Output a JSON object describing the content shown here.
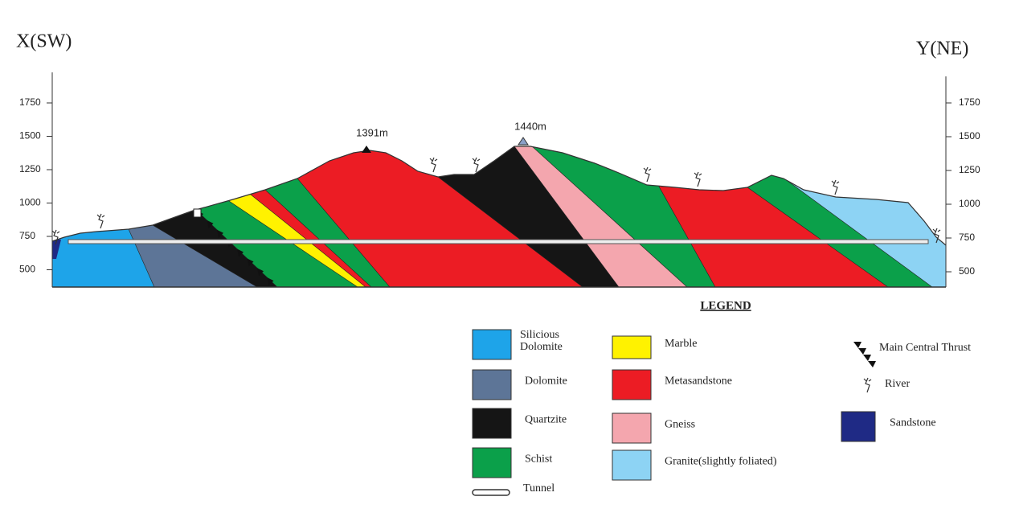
{
  "title_left": "X(SW)",
  "title_right": "Y(NE)",
  "left_axis": {
    "ticks": [
      1750,
      1500,
      1250,
      1000,
      750,
      500
    ]
  },
  "right_axis": {
    "ticks": [
      1750,
      1500,
      1250,
      1000,
      750,
      500
    ]
  },
  "peaks": [
    {
      "label": "1391m"
    },
    {
      "label": "1440m"
    }
  ],
  "legend": {
    "title": "LEGEND",
    "items": [
      {
        "lines": [
          "Silicious",
          "Dolomite"
        ],
        "color": "#1ea4e9"
      },
      {
        "label": "Dolomite",
        "color": "#5d7597"
      },
      {
        "label": "Quartzite",
        "color": "#151515"
      },
      {
        "label": "Schist",
        "color": "#0ba04a"
      },
      {
        "label": "Tunnel"
      },
      {
        "label": "Marble",
        "color": "#fff200"
      },
      {
        "label": "Metasandstone",
        "color": "#ec1c24"
      },
      {
        "label": "Gneiss",
        "color": "#f4a6ae"
      },
      {
        "label": "Granite(slightly foliated)",
        "color": "#8dd3f4"
      },
      {
        "label": "Main Central Thrust"
      },
      {
        "label": "River"
      },
      {
        "label": "Sandstone",
        "color": "#1f2a85"
      }
    ]
  }
}
